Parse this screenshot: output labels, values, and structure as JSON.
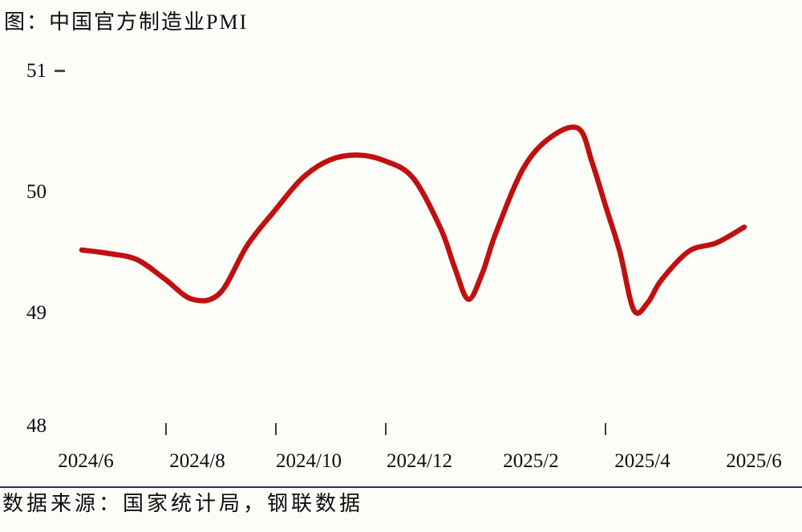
{
  "title": "图：中国官方制造业PMI",
  "source": "数据来源：国家统计局，钢联数据",
  "colors": {
    "background": "#FCFCF8",
    "line": "#C01010",
    "divider": "#1B3767",
    "text": "#0e0e0e",
    "tick": "#3d3d3d"
  },
  "chart_data": {
    "type": "line",
    "title": "图：中国官方制造业PMI",
    "series_name": "中国官方制造业PMI",
    "x": [
      "2024/6",
      "2024/7",
      "2024/8",
      "2024/9",
      "2024/10",
      "2024/11",
      "2024/12",
      "2025/1",
      "2025/2",
      "2025/3",
      "2025/4",
      "2025/5",
      "2025/6"
    ],
    "values": [
      49.5,
      49.4,
      49.1,
      49.6,
      50.1,
      50.3,
      50.1,
      49.1,
      50.2,
      50.5,
      49.0,
      49.5,
      49.7
    ],
    "ylim": [
      48,
      51
    ],
    "ytick_labels": [
      "51",
      "50",
      "49",
      "48"
    ],
    "xtick_labels": [
      "2024/6",
      "2024/8",
      "2024/10",
      "2024/12",
      "2025/2",
      "2025/4",
      "2025/6"
    ],
    "grid": false,
    "legend": "none",
    "line_color": "#C01010",
    "smoothing": "spline",
    "source": "数据来源：国家统计局，钢联数据",
    "curve_samples": [
      [
        0,
        49.52
      ],
      [
        0.5,
        49.49
      ],
      [
        1,
        49.44
      ],
      [
        1.5,
        49.28
      ],
      [
        2,
        49.11
      ],
      [
        2.5,
        49.16
      ],
      [
        3,
        49.56
      ],
      [
        3.5,
        49.85
      ],
      [
        4,
        50.12
      ],
      [
        4.5,
        50.27
      ],
      [
        5,
        50.31
      ],
      [
        5.5,
        50.26
      ],
      [
        6,
        50.12
      ],
      [
        6.5,
        49.7
      ],
      [
        6.75,
        49.38
      ],
      [
        7,
        49.11
      ],
      [
        7.25,
        49.32
      ],
      [
        7.5,
        49.66
      ],
      [
        8,
        50.2
      ],
      [
        8.5,
        50.46
      ],
      [
        9,
        50.53
      ],
      [
        9.25,
        50.24
      ],
      [
        9.5,
        49.87
      ],
      [
        9.75,
        49.5
      ],
      [
        10,
        49.02
      ],
      [
        10.25,
        49.08
      ],
      [
        10.5,
        49.27
      ],
      [
        11,
        49.51
      ],
      [
        11.5,
        49.58
      ],
      [
        12,
        49.71
      ]
    ]
  }
}
